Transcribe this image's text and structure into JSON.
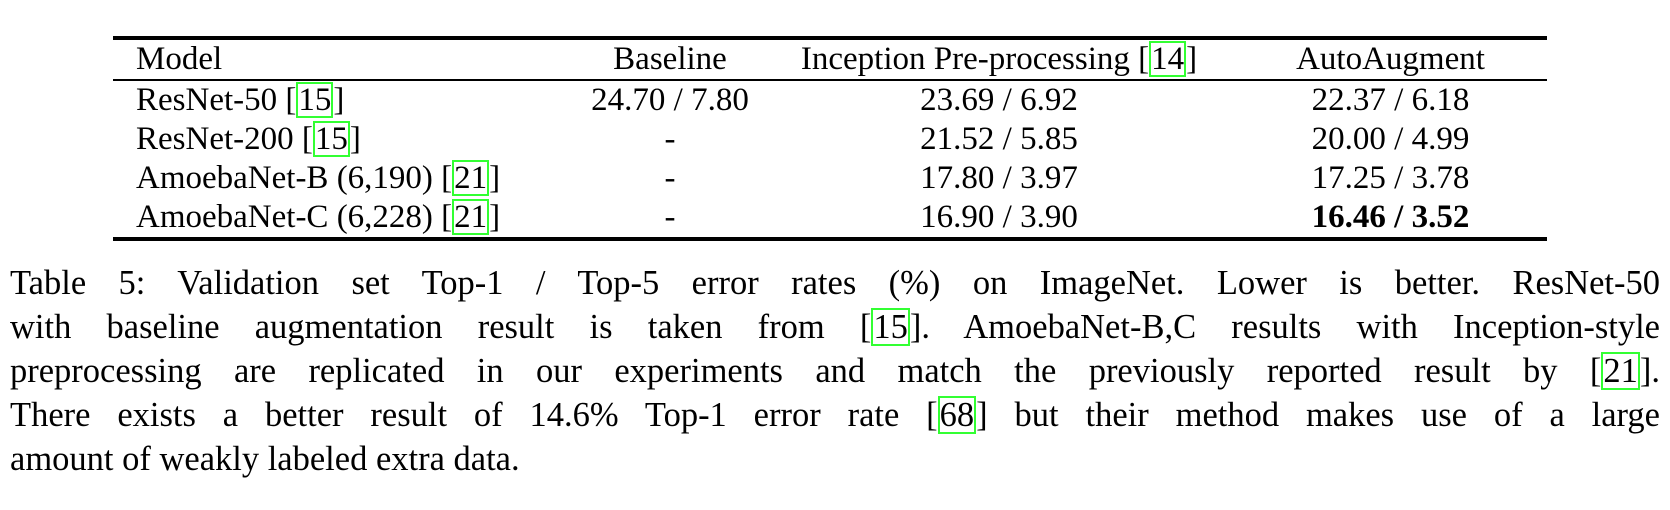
{
  "table": {
    "columns": [
      "Model",
      "Baseline",
      "Inception Pre-processing",
      "AutoAugment"
    ],
    "inception_cite": "14",
    "rows": [
      {
        "model": "ResNet-50",
        "cite": "15",
        "baseline": "24.70 / 7.80",
        "inception": "23.69 / 6.92",
        "autoaugment": "22.37 / 6.18"
      },
      {
        "model": "ResNet-200",
        "cite": "15",
        "baseline": "-",
        "inception": "21.52 / 5.85",
        "autoaugment": "20.00 / 4.99"
      },
      {
        "model": "AmoebaNet-B (6,190)",
        "cite": "21",
        "baseline": "-",
        "inception": "17.80 / 3.97",
        "autoaugment": "17.25 / 3.78"
      },
      {
        "model": "AmoebaNet-C (6,228)",
        "cite": "21",
        "baseline": "-",
        "inception": "16.90 / 3.90",
        "autoaugment": "16.46 / 3.52"
      }
    ]
  },
  "caption": {
    "line1": "Table 5: Validation set Top-1 / Top-5 error rates (%) on ImageNet. Lower is better. ResNet-50",
    "line2_pre": "with baseline augmentation result is taken from [",
    "line2_cite": "15",
    "line2_post": "]. AmoebaNet-B,C results with Inception-style",
    "line3_pre": "preprocessing are replicated in our experiments and match the previously reported result by [",
    "line3_cite": "21",
    "line3_post": "].",
    "line4_pre": "There exists a better result of 14.6% Top-1 error rate [",
    "line4_cite": "68",
    "line4_post": "] but their method makes use of a large",
    "line5": "amount of weakly labeled extra data."
  }
}
